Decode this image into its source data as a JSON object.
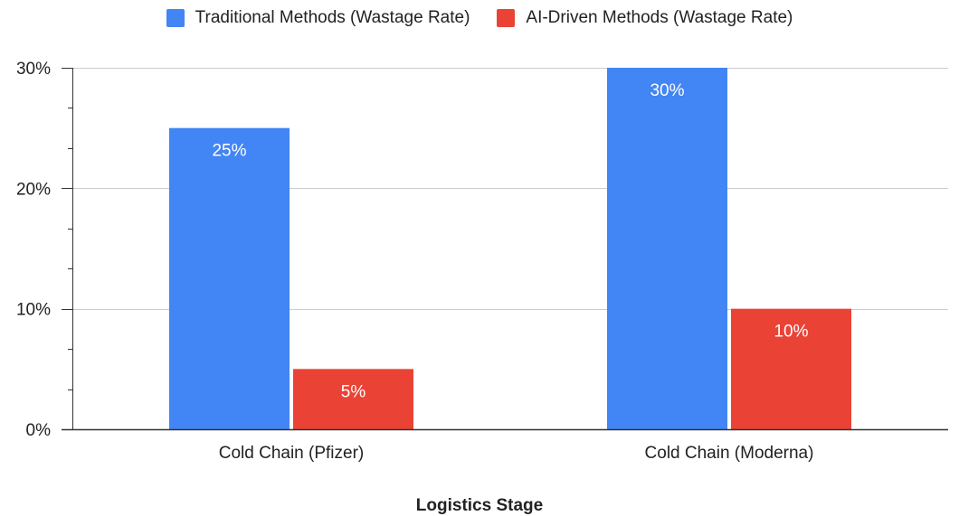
{
  "chart_data": {
    "type": "bar",
    "categories": [
      "Cold Chain (Pfizer)",
      "Cold Chain (Moderna)"
    ],
    "series": [
      {
        "name": "Traditional Methods (Wastage Rate)",
        "values": [
          25,
          30
        ],
        "data_labels": [
          "25%",
          "30%"
        ],
        "color": "#4285f4"
      },
      {
        "name": "AI-Driven Methods (Wastage Rate)",
        "values": [
          5,
          10
        ],
        "data_labels": [
          "5%",
          "10%"
        ],
        "color": "#ea4335"
      }
    ],
    "xlabel": "Logistics Stage",
    "ylabel": "",
    "ylim": [
      0,
      30
    ],
    "y_ticks": [
      0,
      10,
      20,
      30
    ],
    "y_tick_labels": [
      "0%",
      "10%",
      "20%",
      "30%"
    ],
    "grid": true,
    "legend": "top-center"
  }
}
